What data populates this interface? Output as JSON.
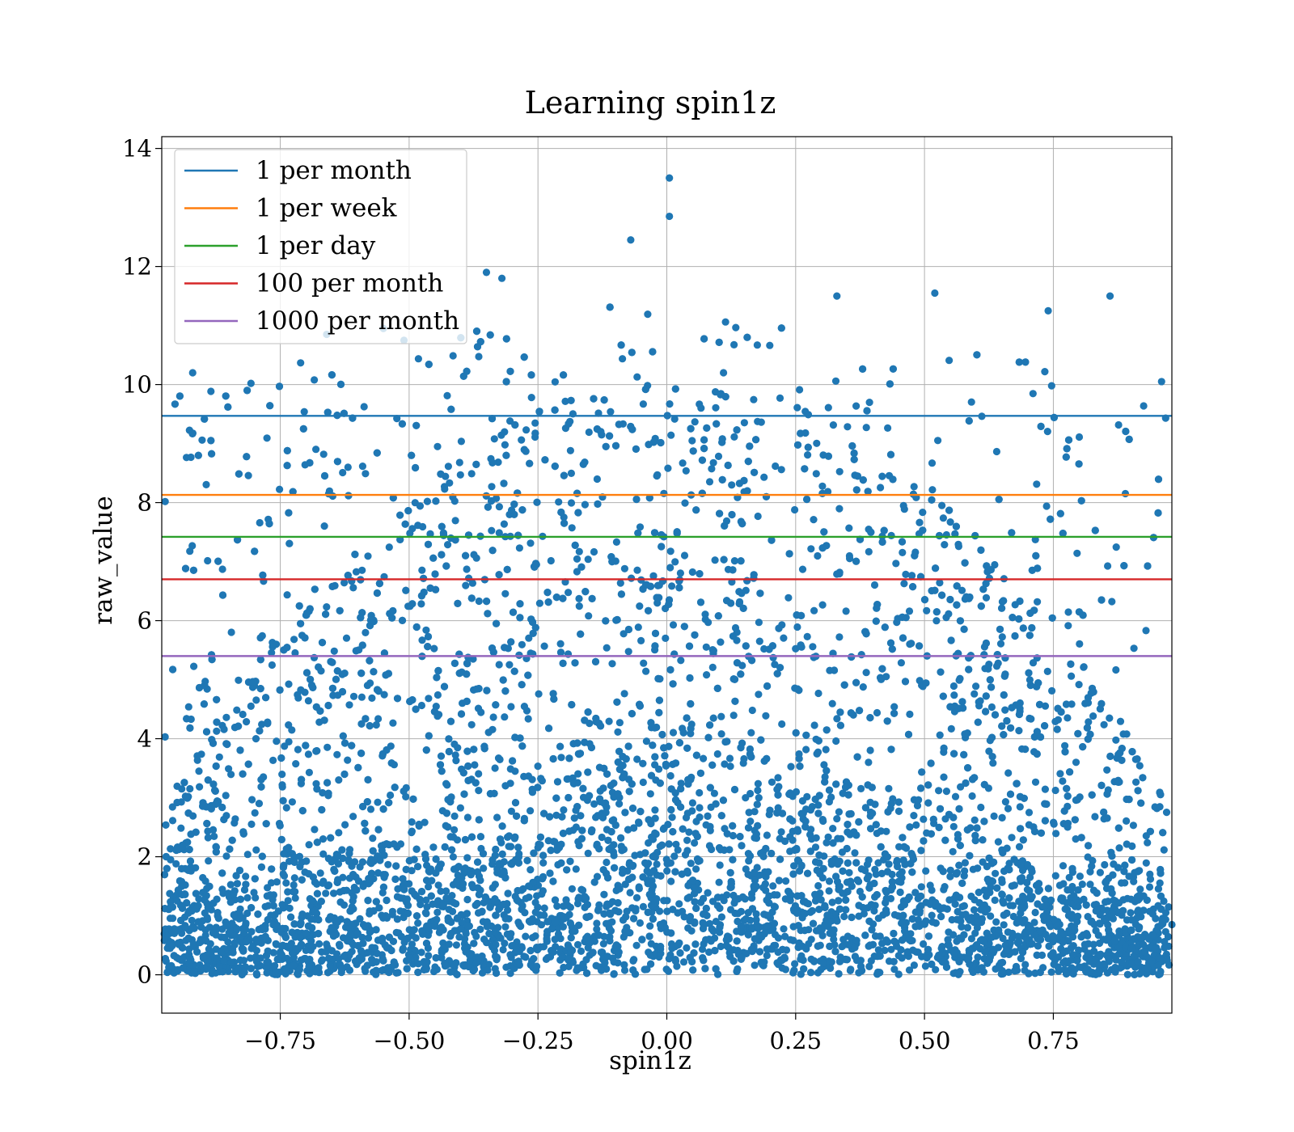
{
  "chart_data": {
    "type": "scatter",
    "title": "Learning spin1z",
    "xlabel": "spin1z",
    "ylabel": "raw_value",
    "xlim": [
      -0.98,
      0.98
    ],
    "ylim": [
      -0.65,
      14.2
    ],
    "xticks": [
      -0.75,
      -0.5,
      -0.25,
      0.0,
      0.25,
      0.5,
      0.75
    ],
    "xtick_labels": [
      "−0.75",
      "−0.50",
      "−0.25",
      "0.00",
      "0.25",
      "0.50",
      "0.75"
    ],
    "yticks": [
      0,
      2,
      4,
      6,
      8,
      10,
      12,
      14
    ],
    "ytick_labels": [
      "0",
      "2",
      "4",
      "6",
      "8",
      "10",
      "12",
      "14"
    ],
    "grid": true,
    "legend_position": "top-left",
    "scatter_color": "#1f77b4",
    "scatter_description_points": [
      {
        "x": 0.005,
        "y": 13.5
      },
      {
        "x": 0.005,
        "y": 12.85
      },
      {
        "x": -0.07,
        "y": 12.45
      },
      {
        "x": -0.35,
        "y": 11.9
      },
      {
        "x": -0.32,
        "y": 11.8
      },
      {
        "x": 0.52,
        "y": 11.55
      },
      {
        "x": 0.86,
        "y": 11.5
      },
      {
        "x": 0.33,
        "y": 11.5
      },
      {
        "x": 0.74,
        "y": 11.25
      },
      {
        "x": -0.55,
        "y": 10.95
      },
      {
        "x": -0.51,
        "y": 10.75
      },
      {
        "x": -0.66,
        "y": 10.85
      },
      {
        "x": 0.96,
        "y": 10.05
      },
      {
        "x": 0.98,
        "y": 0.85
      },
      {
        "x": -0.95,
        "y": 1.25
      },
      {
        "x": -0.92,
        "y": 10.2
      }
    ],
    "series": [
      {
        "name": "1 per month",
        "y": 9.47,
        "color": "#1f77b4"
      },
      {
        "name": "1 per week",
        "y": 8.13,
        "color": "#ff7f0e"
      },
      {
        "name": "1 per day",
        "y": 7.42,
        "color": "#2ca02c"
      },
      {
        "name": "100 per month",
        "y": 6.7,
        "color": "#d62728"
      },
      {
        "name": "1000 per month",
        "y": 5.4,
        "color": "#9467bd"
      }
    ]
  }
}
